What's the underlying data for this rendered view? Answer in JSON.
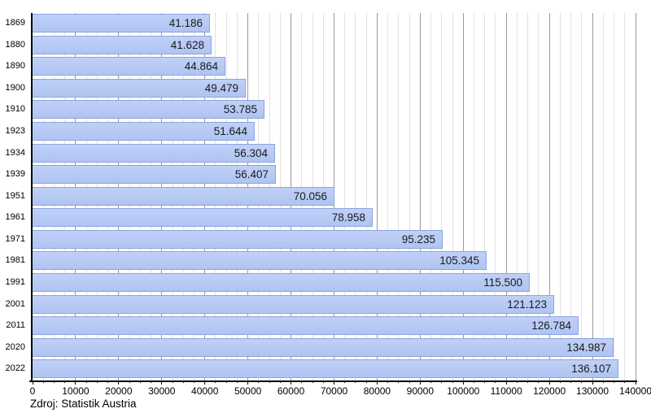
{
  "chart_data": {
    "type": "bar",
    "orientation": "horizontal",
    "title": "",
    "xlabel": "",
    "ylabel": "",
    "source": "Zdroj: Statistik Austria",
    "categories": [
      "1869",
      "1880",
      "1890",
      "1900",
      "1910",
      "1923",
      "1934",
      "1939",
      "1951",
      "1961",
      "1971",
      "1981",
      "1991",
      "2001",
      "2011",
      "2020",
      "2022"
    ],
    "values": [
      41186,
      41628,
      44864,
      49479,
      53785,
      51644,
      56304,
      56407,
      70056,
      78958,
      95235,
      105345,
      115500,
      121123,
      126784,
      134987,
      136107
    ],
    "value_labels": [
      "41.186",
      "41.628",
      "44.864",
      "49.479",
      "53.785",
      "51.644",
      "56.304",
      "56.407",
      "70.056",
      "78.958",
      "95.235",
      "105.345",
      "115.500",
      "121.123",
      "126.784",
      "134.987",
      "136.107"
    ],
    "xlim": [
      0,
      140000
    ],
    "x_major_step": 10000,
    "x_minor_step": 2500,
    "x_tick_labels": [
      "0",
      "10000",
      "20000",
      "30000",
      "40000",
      "50000",
      "60000",
      "70000",
      "80000",
      "90000",
      "100000",
      "110000",
      "120000",
      "130000",
      "140000"
    ],
    "grid": true,
    "legend": null,
    "colors": {
      "bar_fill_top": "#c0d0f7",
      "bar_fill_bottom": "#afc4f2",
      "bar_border": "#8ca4e0",
      "major_grid": "#999999",
      "minor_grid": "#e2e2e2",
      "axis": "#000000",
      "value_text": "#1a1a1a",
      "tick_text": "#000000",
      "category_text": "#000000"
    }
  }
}
